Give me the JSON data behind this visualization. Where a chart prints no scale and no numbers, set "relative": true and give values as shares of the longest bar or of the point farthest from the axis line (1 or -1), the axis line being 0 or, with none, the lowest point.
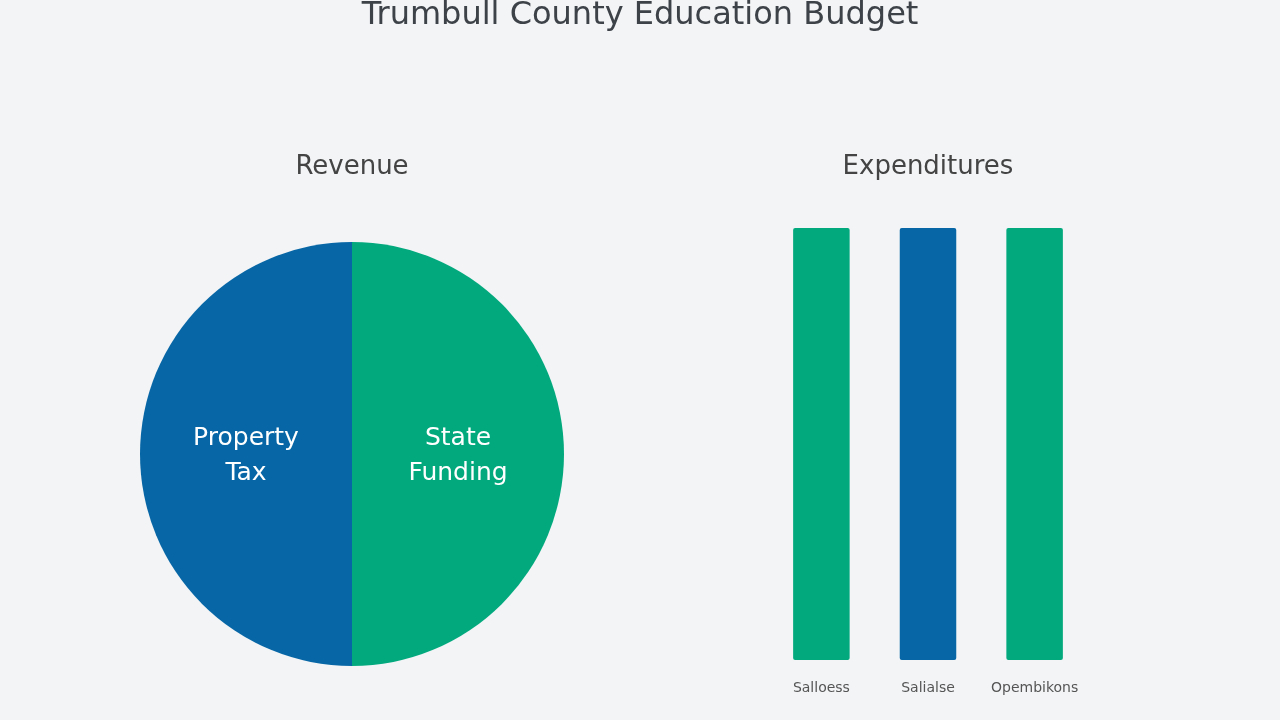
{
  "chart_data": [
    {
      "type": "pie",
      "title": "Revenue",
      "annotations": [
        "Trumbull County Education Budget"
      ],
      "categories": [
        "Property Tax",
        "State Funding"
      ],
      "values": [
        50,
        50
      ],
      "colors": [
        "#0767a6",
        "#02a97d"
      ]
    },
    {
      "type": "bar",
      "title": "Expenditures",
      "categories": [
        "Salloess",
        "Salialse",
        "Opembikons"
      ],
      "values": [
        1,
        1,
        1
      ],
      "colors": [
        "#02a97d",
        "#0767a6",
        "#02a97d"
      ],
      "relative": true
    }
  ]
}
